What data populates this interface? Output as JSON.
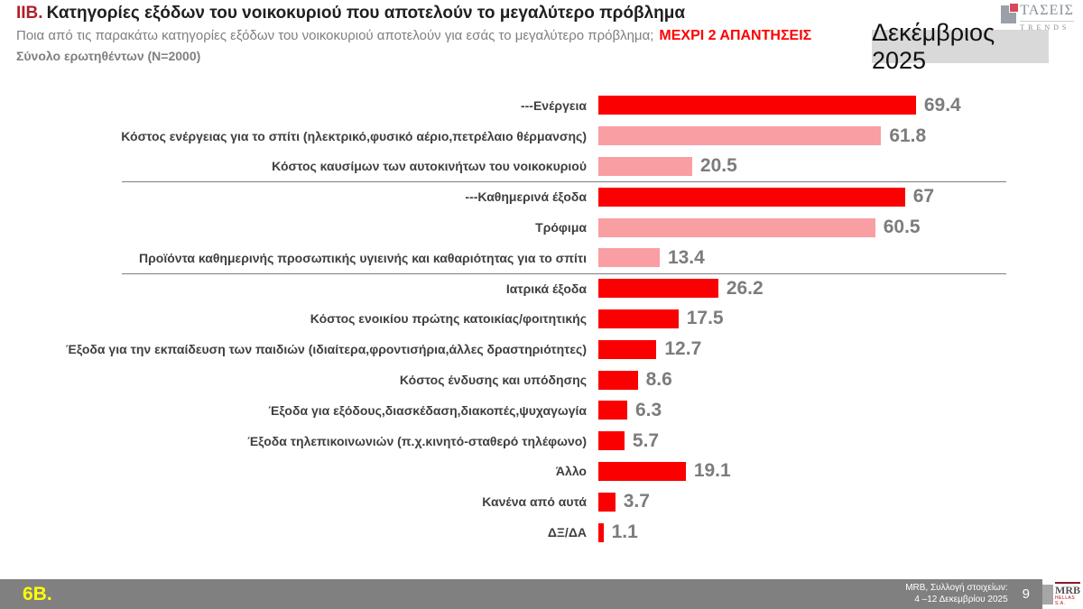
{
  "header": {
    "title_prefix": "ΙΙΒ.",
    "title": "Κατηγορίες εξόδων του νοικοκυριού  που αποτελούν το μεγαλύτερο πρόβλημα",
    "subtitle": "Ποια από τις παρακάτω κατηγορίες εξόδων του νοικοκυριού  αποτελούν για εσάς το μεγαλύτερο πρόβλημα;",
    "subtitle_highlight": "ΜΕΧΡΙ 2 ΑΠΑΝΤΗΣΕΙΣ",
    "sample": "Σύνολο ερωτηθέντων (N=2000)",
    "date_box": "Δεκέμβριος 2025",
    "brand_logo": {
      "name": "ΤΑΣΕΙΣ",
      "sub": "TRENDS"
    }
  },
  "chart_data": {
    "type": "bar",
    "orientation": "horizontal",
    "unit": "percent",
    "xlim": [
      0,
      75
    ],
    "grid": false,
    "legend": false,
    "categories": [
      "---Ενέργεια",
      "Κόστος ενέργειας για το σπίτι (ηλεκτρικό,φυσικό αέριο,πετρέλαιο θέρμανσης)",
      "Κόστος καυσίμων των αυτοκινήτων του νοικοκυριού",
      "---Καθημερινά έξοδα",
      "Τρόφιμα",
      "Προϊόντα καθημερινής προσωπικής υγιεινής και καθαριότητας για το σπίτι",
      "Ιατρικά έξοδα",
      "Κόστος ενοικίου πρώτης κατοικίας/φοιτητικής",
      "Έξοδα για την εκπαίδευση των παιδιών (ιδιαίτερα,φροντισήρια,άλλες δραστηριότητες)",
      "Κόστος ένδυσης και υπόδησης",
      "Έξοδα για εξόδους,διασκέδαση,διακοπές,ψυχαγωγία",
      "Έξοδα τηλεπικοινωνιών (π.χ.κινητό-σταθερό τηλέφωνο)",
      "Άλλο",
      "Κανένα από αυτά",
      "ΔΞ/ΔΑ"
    ],
    "values": [
      69.4,
      61.8,
      20.5,
      67,
      60.5,
      13.4,
      26.2,
      17.5,
      12.7,
      8.6,
      6.3,
      5.7,
      19.1,
      3.7,
      1.1
    ],
    "value_labels": [
      "69.4",
      "61.8",
      "20.5",
      "67",
      "60.5",
      "13.4",
      "26.2",
      "17.5",
      "12.7",
      "8.6",
      "6.3",
      "5.7",
      "19.1",
      "3.7",
      "1.1"
    ],
    "bar_styles": [
      "red",
      "pink",
      "pink",
      "red",
      "pink",
      "pink",
      "red",
      "red",
      "red",
      "red",
      "red",
      "red",
      "red",
      "red",
      "red"
    ],
    "separators_after_index": [
      2,
      5
    ],
    "colors": {
      "red": "#FA0000",
      "pink": "#F99EA3",
      "value_text": "#7C7C7C",
      "label_text": "#3F3F3F"
    }
  },
  "footer": {
    "question_code": "6Β.",
    "source_line1": "MRB, Συλλογή στοιχείων:",
    "source_line2": "4 –12 Δεκεμβρίου 2025",
    "page_number": "9",
    "logo": {
      "name": "MRB",
      "sub": "HELLAS S.A."
    }
  }
}
